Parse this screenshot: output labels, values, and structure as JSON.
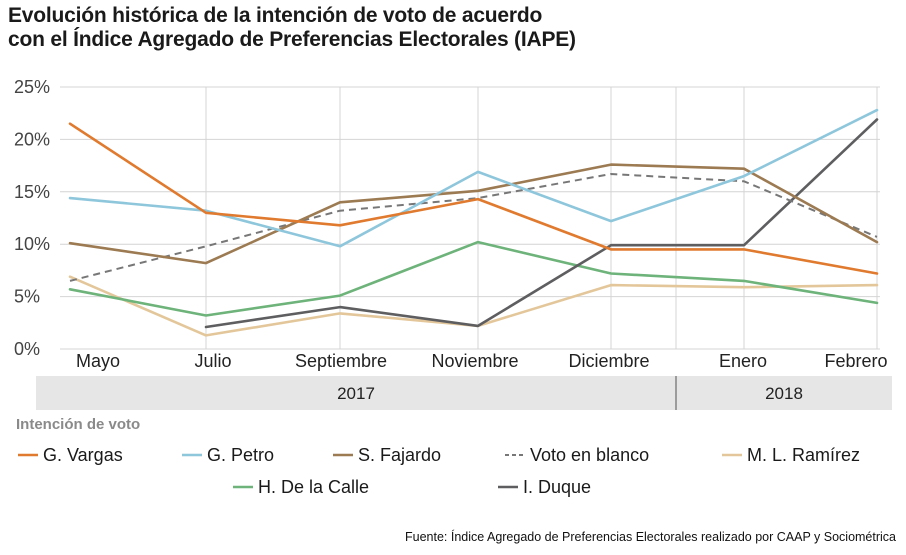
{
  "title_lines": [
    "Evolución histórica de la intención de voto de acuerdo",
    "con el Índice Agregado de Preferencias Electorales (IAPE)"
  ],
  "source": "Fuente: Índice Agregado de Preferencias Electorales realizado por CAAP y Sociométrica",
  "legend_title": "Intención de voto",
  "colors": {
    "vargas": "#e07a2e",
    "petro": "#8ec6dc",
    "fajardo": "#9c7a52",
    "blanco": "#777777",
    "ramirez": "#e3c79a",
    "delacalle": "#6db37a",
    "duque": "#5e5e60",
    "grid": "#d4d4d4",
    "year_band": "#e6e6e6"
  },
  "chart_data": {
    "type": "line",
    "categories": [
      "Mayo",
      "Julio",
      "Septiembre",
      "Noviembre",
      "Diciembre",
      "Enero",
      "Febrero"
    ],
    "year_groups": [
      {
        "label": "2017",
        "from": "Mayo",
        "to": "Diciembre"
      },
      {
        "label": "2018",
        "from": "Enero",
        "to": "Febrero"
      }
    ],
    "ylim": [
      0,
      25
    ],
    "yticks": [
      "0%",
      "5%",
      "10%",
      "15%",
      "20%",
      "25%"
    ],
    "series": [
      {
        "name": "G. Vargas",
        "color_key": "vargas",
        "dashed": false,
        "values": [
          21.5,
          13.0,
          11.8,
          14.3,
          9.5,
          9.5,
          7.2
        ]
      },
      {
        "name": "G. Petro",
        "color_key": "petro",
        "dashed": false,
        "values": [
          14.4,
          13.2,
          9.8,
          16.9,
          12.2,
          16.5,
          22.8
        ]
      },
      {
        "name": "S. Fajardo",
        "color_key": "fajardo",
        "dashed": false,
        "values": [
          10.1,
          8.2,
          14.0,
          15.1,
          17.6,
          17.2,
          10.2
        ]
      },
      {
        "name": "Voto en blanco",
        "color_key": "blanco",
        "dashed": true,
        "values": [
          6.5,
          9.8,
          13.2,
          14.4,
          16.7,
          16.0,
          10.7
        ]
      },
      {
        "name": "M. L. Ramírez",
        "color_key": "ramirez",
        "dashed": false,
        "values": [
          6.9,
          1.3,
          3.4,
          2.2,
          6.1,
          5.9,
          6.1
        ]
      },
      {
        "name": "H. De la Calle",
        "color_key": "delacalle",
        "dashed": false,
        "values": [
          5.7,
          3.2,
          5.1,
          10.2,
          7.2,
          6.5,
          4.4
        ]
      },
      {
        "name": "I. Duque",
        "color_key": "duque",
        "dashed": false,
        "values": [
          null,
          2.1,
          4.0,
          2.2,
          9.9,
          9.9,
          21.9
        ]
      }
    ]
  }
}
